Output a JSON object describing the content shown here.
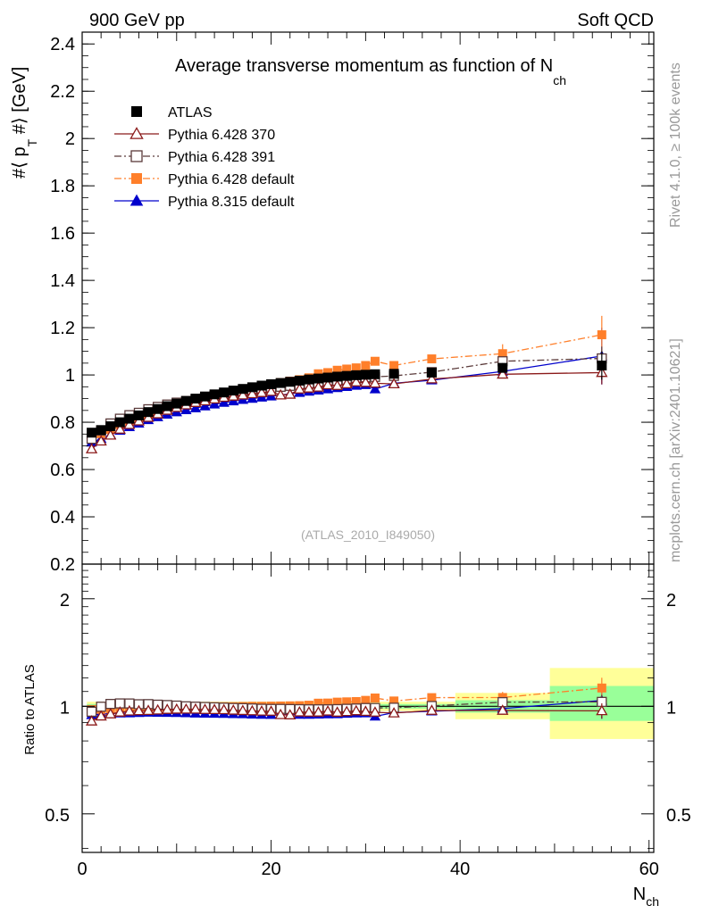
{
  "header": {
    "left": "900 GeV pp",
    "right": "Soft QCD",
    "side_top": "Rivet 4.1.0, ≥ 100k events",
    "side_bottom": "mcplots.cern.ch [arXiv:2401.10621]",
    "watermark": "(ATLAS_2010_I849050)"
  },
  "colors": {
    "atlas": "#000000",
    "p370": "#8b1a1a",
    "p391": "#5a3a3a",
    "pdef": "#ff7f2a",
    "p8": "#0000cc",
    "band_yellow": "#ffff99",
    "band_green": "#99ff99"
  },
  "chart_data": {
    "type": "scatter",
    "title": "Average transverse momentum as function of N",
    "title_sub": "ch",
    "xlabel": "N",
    "xlabel_sub": "ch",
    "ylabel": "#⟨ p",
    "ylabel_sub": "T",
    "ylabel_end": " #⟩ [GeV]",
    "ratio_ylabel": "Ratio to ATLAS",
    "xlim": [
      0,
      60.5
    ],
    "ylim": [
      0.2,
      2.45
    ],
    "ratio_ylim": [
      0.39,
      2.5
    ],
    "x_ticks": [
      "0",
      "20",
      "40",
      "60"
    ],
    "y_ticks": [
      "0.2",
      "0.4",
      "0.6",
      "0.8",
      "1",
      "1.2",
      "1.4",
      "1.6",
      "1.8",
      "2",
      "2.2",
      "2.4"
    ],
    "ratio_ticks": [
      "0.5",
      "1",
      "2"
    ],
    "x": [
      1,
      2,
      3,
      4,
      5,
      6,
      7,
      8,
      9,
      10,
      11,
      12,
      13,
      14,
      15,
      16,
      17,
      18,
      19,
      20,
      21,
      22,
      23,
      24,
      25,
      26,
      27,
      28,
      29,
      30,
      31,
      33,
      37,
      44.5,
      55
    ],
    "bands": [
      {
        "x0": 0.5,
        "x1": 39.5,
        "yellow": [
          0.97,
          1.03
        ],
        "green": [
          0.985,
          1.015
        ]
      },
      {
        "x0": 39.5,
        "x1": 49.5,
        "yellow": [
          0.92,
          1.09
        ],
        "green": [
          0.96,
          1.04
        ]
      },
      {
        "x0": 49.5,
        "x1": 60.5,
        "yellow": [
          0.81,
          1.28
        ],
        "green": [
          0.91,
          1.14
        ]
      }
    ],
    "series": [
      {
        "name": "ATLAS",
        "marker": "square-filled",
        "line": "none",
        "values": [
          0.756,
          0.767,
          0.783,
          0.8,
          0.815,
          0.829,
          0.843,
          0.856,
          0.868,
          0.879,
          0.89,
          0.9,
          0.909,
          0.918,
          0.926,
          0.934,
          0.941,
          0.948,
          0.955,
          0.961,
          0.966,
          0.971,
          0.976,
          0.981,
          0.985,
          0.989,
          0.993,
          0.996,
          0.999,
          1.001,
          1.003,
          1.005,
          1.01,
          1.03,
          1.04
        ],
        "errors": [
          0.005,
          0.005,
          0.005,
          0.005,
          0.005,
          0.005,
          0.005,
          0.005,
          0.005,
          0.005,
          0.005,
          0.005,
          0.005,
          0.005,
          0.005,
          0.005,
          0.005,
          0.005,
          0.005,
          0.005,
          0.005,
          0.005,
          0.005,
          0.005,
          0.005,
          0.005,
          0.005,
          0.005,
          0.005,
          0.005,
          0.005,
          0.005,
          0.01,
          0.02,
          0.06
        ]
      },
      {
        "name": "Pythia 6.428 370",
        "marker": "triangle-open",
        "line": "solid",
        "values": [
          0.687,
          0.72,
          0.745,
          0.77,
          0.79,
          0.805,
          0.82,
          0.835,
          0.85,
          0.862,
          0.873,
          0.883,
          0.89,
          0.898,
          0.905,
          0.91,
          0.915,
          0.92,
          0.925,
          0.93,
          0.915,
          0.918,
          0.94,
          0.944,
          0.948,
          0.958,
          0.955,
          0.962,
          0.97,
          0.968,
          0.965,
          0.962,
          0.983,
          1.003,
          1.01
        ],
        "errors": [
          0,
          0,
          0,
          0,
          0,
          0,
          0,
          0,
          0,
          0,
          0,
          0,
          0,
          0,
          0,
          0,
          0,
          0,
          0,
          0,
          0,
          0,
          0,
          0,
          0,
          0,
          0,
          0,
          0,
          0,
          0,
          0,
          0,
          0.01,
          0.05
        ]
      },
      {
        "name": "Pythia 6.428 391",
        "marker": "square-open",
        "line": "dashdot",
        "values": [
          0.73,
          0.765,
          0.795,
          0.815,
          0.83,
          0.84,
          0.855,
          0.865,
          0.875,
          0.883,
          0.89,
          0.898,
          0.905,
          0.912,
          0.918,
          0.924,
          0.93,
          0.935,
          0.94,
          0.945,
          0.95,
          0.954,
          0.958,
          0.962,
          0.966,
          0.97,
          0.975,
          0.98,
          0.985,
          0.99,
          0.992,
          0.996,
          1.012,
          1.058,
          1.07
        ],
        "errors": [
          0,
          0,
          0,
          0,
          0,
          0,
          0,
          0,
          0,
          0,
          0,
          0,
          0,
          0,
          0,
          0,
          0,
          0,
          0,
          0,
          0,
          0,
          0,
          0,
          0,
          0,
          0,
          0,
          0,
          0,
          0,
          0,
          0,
          0.01,
          0.05
        ]
      },
      {
        "name": "Pythia 6.428 default",
        "marker": "square-filled",
        "line": "dashdot",
        "values": [
          0.74,
          0.752,
          0.77,
          0.79,
          0.805,
          0.82,
          0.835,
          0.848,
          0.86,
          0.873,
          0.885,
          0.896,
          0.906,
          0.916,
          0.924,
          0.932,
          0.94,
          0.948,
          0.955,
          0.962,
          0.968,
          0.974,
          0.98,
          0.988,
          1.005,
          1.01,
          1.02,
          1.025,
          1.03,
          1.04,
          1.058,
          1.04,
          1.068,
          1.09,
          1.17
        ],
        "errors": [
          0,
          0,
          0,
          0,
          0,
          0,
          0,
          0,
          0,
          0,
          0,
          0,
          0,
          0,
          0,
          0,
          0,
          0,
          0,
          0,
          0,
          0,
          0,
          0,
          0.005,
          0.005,
          0.005,
          0.005,
          0.008,
          0.008,
          0.015,
          0.01,
          0.01,
          0.04,
          0.08
        ]
      },
      {
        "name": "Pythia 8.315 default",
        "marker": "triangle-filled",
        "line": "solid",
        "values": [
          0.715,
          0.73,
          0.748,
          0.765,
          0.78,
          0.795,
          0.81,
          0.822,
          0.833,
          0.843,
          0.852,
          0.86,
          0.868,
          0.876,
          0.883,
          0.889,
          0.895,
          0.9,
          0.905,
          0.91,
          0.915,
          0.92,
          0.925,
          0.93,
          0.935,
          0.94,
          0.945,
          0.95,
          0.955,
          0.958,
          0.94,
          0.965,
          0.978,
          1.015,
          1.08
        ],
        "errors": [
          0,
          0,
          0,
          0,
          0,
          0,
          0,
          0,
          0,
          0,
          0,
          0,
          0,
          0,
          0,
          0,
          0,
          0,
          0,
          0,
          0,
          0,
          0,
          0,
          0,
          0,
          0,
          0,
          0,
          0,
          0.01,
          0.01,
          0.01,
          0.02,
          0.12
        ]
      }
    ]
  }
}
